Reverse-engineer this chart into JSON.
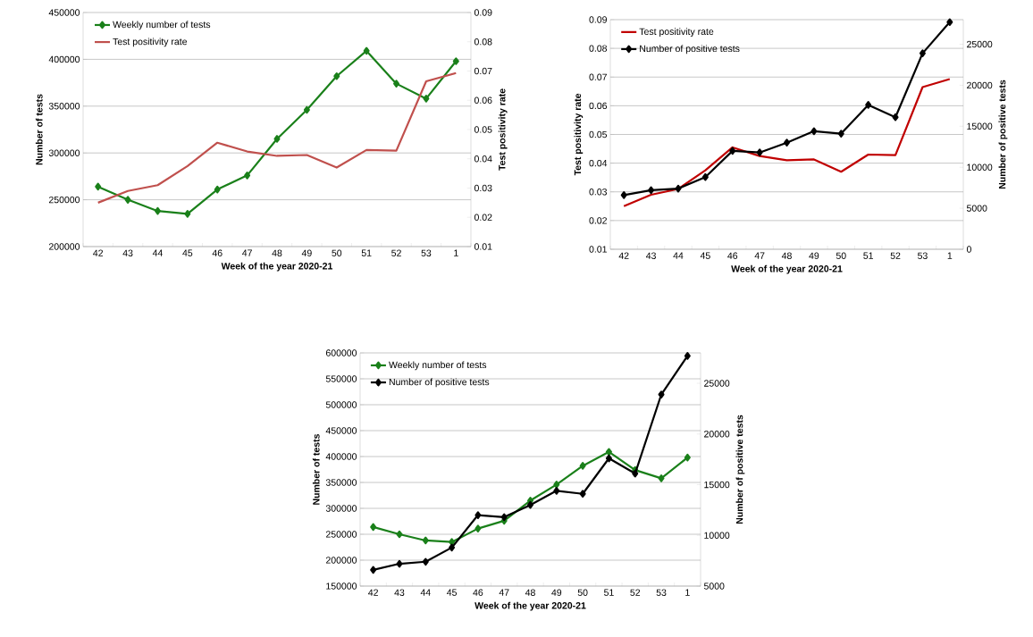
{
  "chart_data": [
    {
      "type": "line",
      "categories": [
        "42",
        "43",
        "44",
        "45",
        "46",
        "47",
        "48",
        "49",
        "50",
        "51",
        "52",
        "53",
        "1"
      ],
      "xlabel": "Week of the year 2020-21",
      "ylabel": "Number  of tests",
      "y2label": "Test positivity rate",
      "ylim": [
        200000,
        450000
      ],
      "yticks": [
        200000,
        250000,
        300000,
        350000,
        400000,
        450000
      ],
      "y2lim": [
        0.01,
        0.09
      ],
      "y2ticks": [
        0.01,
        0.02,
        0.03,
        0.04,
        0.05,
        0.06,
        0.07,
        0.08,
        0.09
      ],
      "grid": "y",
      "legend": "top left",
      "series": [
        {
          "name": "Weekly number of tests",
          "color": "#1a801a",
          "marker": "diamond",
          "values": [
            264000,
            250000,
            238000,
            235000,
            261000,
            276000,
            315000,
            346000,
            382000,
            409000,
            374000,
            358000,
            398000
          ]
        },
        {
          "name": "Test positivity rate",
          "color": "#c0504d",
          "marker": "none",
          "axis": "y2",
          "values": [
            0.025,
            0.029,
            0.031,
            0.0375,
            0.0455,
            0.0425,
            0.041,
            0.0413,
            0.037,
            0.043,
            0.0428,
            0.0665,
            0.0693
          ]
        }
      ]
    },
    {
      "type": "line",
      "categories": [
        "42",
        "43",
        "44",
        "45",
        "46",
        "47",
        "48",
        "49",
        "50",
        "51",
        "52",
        "53",
        "1"
      ],
      "xlabel": "Week of the year 2020-21",
      "ylabel": "Test positivity rate",
      "y2label": "Number of positive tests",
      "ylim": [
        0.01,
        0.09
      ],
      "yticks": [
        0.01,
        0.02,
        0.03,
        0.04,
        0.05,
        0.06,
        0.07,
        0.08,
        0.09
      ],
      "y2lim": [
        0,
        28000
      ],
      "y2ticks": [
        0,
        5000,
        10000,
        15000,
        20000,
        25000
      ],
      "grid": "y",
      "legend": "top left",
      "series": [
        {
          "name": "Test positivity rate",
          "color": "#c00000",
          "marker": "none",
          "values": [
            0.025,
            0.029,
            0.031,
            0.0375,
            0.0455,
            0.0425,
            0.041,
            0.0413,
            0.037,
            0.043,
            0.0428,
            0.0665,
            0.0693
          ]
        },
        {
          "name": "Number of positive tests",
          "color": "#000000",
          "marker": "diamond",
          "axis": "y2",
          "values": [
            6600,
            7200,
            7400,
            8800,
            12000,
            11800,
            13000,
            14400,
            14100,
            17600,
            16100,
            23900,
            27700
          ]
        }
      ]
    },
    {
      "type": "line",
      "categories": [
        "42",
        "43",
        "44",
        "45",
        "46",
        "47",
        "48",
        "49",
        "50",
        "51",
        "52",
        "53",
        "1"
      ],
      "xlabel": "Week of the year 2020-21",
      "ylabel": "Number of tests",
      "y2label": "Number of positive tests",
      "ylim": [
        150000,
        600000
      ],
      "yticks": [
        150000,
        200000,
        250000,
        300000,
        350000,
        400000,
        450000,
        500000,
        550000,
        600000
      ],
      "y2lim": [
        5000,
        28000
      ],
      "y2ticks": [
        5000,
        10000,
        15000,
        20000,
        25000
      ],
      "grid": "y",
      "legend": "top left",
      "series": [
        {
          "name": "Weekly number of tests",
          "color": "#1a801a",
          "marker": "diamond",
          "values": [
            264000,
            250000,
            238000,
            235000,
            261000,
            276000,
            315000,
            346000,
            382000,
            409000,
            374000,
            358000,
            398000
          ]
        },
        {
          "name": "Number of positive tests",
          "color": "#000000",
          "marker": "diamond",
          "axis": "y2",
          "values": [
            6600,
            7200,
            7400,
            8800,
            12000,
            11800,
            13000,
            14400,
            14100,
            17600,
            16100,
            23900,
            27700
          ]
        }
      ]
    }
  ]
}
